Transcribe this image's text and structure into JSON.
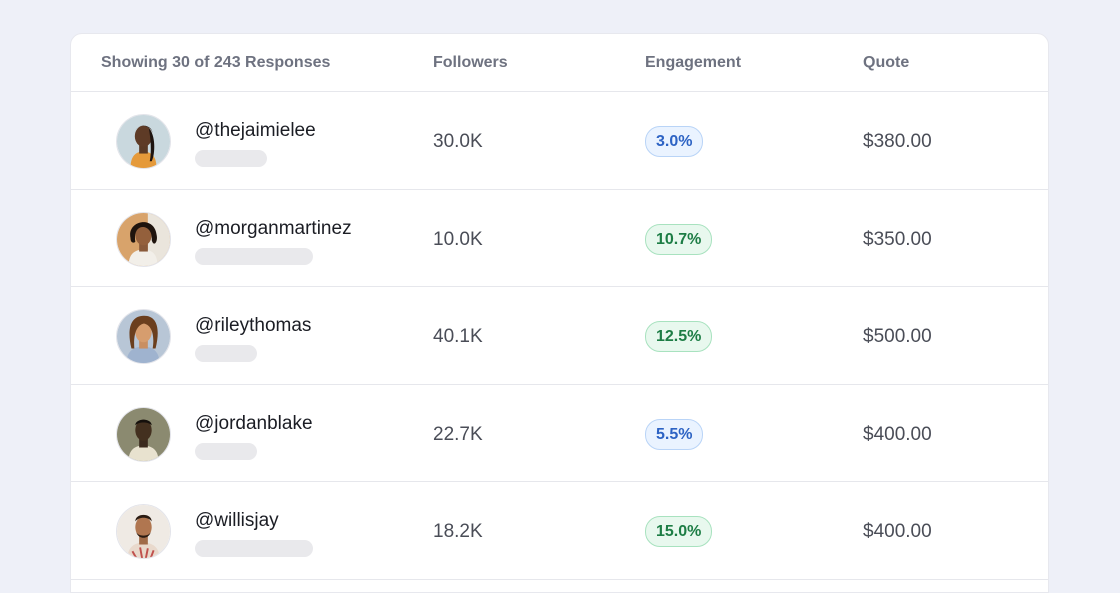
{
  "table": {
    "header": {
      "count_label": "Showing 30 of 243 Responses",
      "followers_label": "Followers",
      "engagement_label": "Engagement",
      "quote_label": "Quote"
    },
    "rows": [
      {
        "handle": "@thejaimielee",
        "followers": "30.0K",
        "engagement": "3.0%",
        "engagement_tone": "blue",
        "quote": "$380.00"
      },
      {
        "handle": "@morganmartinez",
        "followers": "10.0K",
        "engagement": "10.7%",
        "engagement_tone": "green",
        "quote": "$350.00"
      },
      {
        "handle": "@rileythomas",
        "followers": "40.1K",
        "engagement": "12.5%",
        "engagement_tone": "green",
        "quote": "$500.00"
      },
      {
        "handle": "@jordanblake",
        "followers": "22.7K",
        "engagement": "5.5%",
        "engagement_tone": "blue",
        "quote": "$400.00"
      },
      {
        "handle": "@willisjay",
        "followers": "18.2K",
        "engagement": "15.0%",
        "engagement_tone": "green",
        "quote": "$400.00"
      }
    ]
  },
  "colors": {
    "background": "#eef0f8",
    "badge_blue_text": "#2d63c4",
    "badge_green_text": "#1d7d45"
  }
}
